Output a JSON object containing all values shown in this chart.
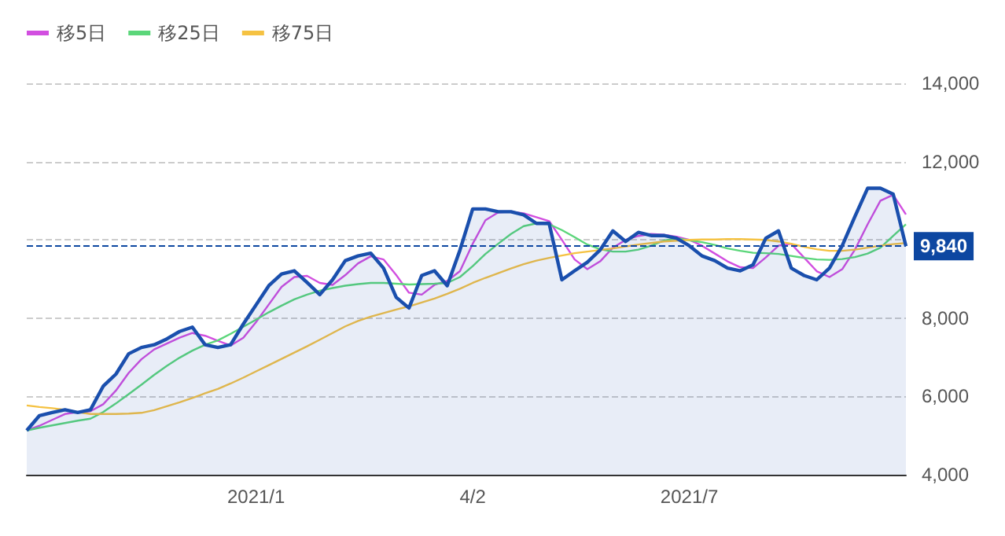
{
  "chart_data": {
    "type": "line",
    "categories": [
      null,
      null,
      null,
      null,
      null,
      null,
      null,
      null,
      null,
      null,
      null,
      null,
      null,
      null,
      null,
      null,
      null,
      null,
      "2021/1",
      null,
      null,
      null,
      null,
      null,
      null,
      null,
      null,
      null,
      null,
      null,
      null,
      null,
      null,
      null,
      null,
      "4/2",
      null,
      null,
      null,
      null,
      null,
      null,
      null,
      null,
      null,
      null,
      null,
      null,
      null,
      null,
      null,
      null,
      "2021/7",
      null,
      null,
      null,
      null,
      null,
      null,
      null,
      null,
      null,
      null,
      null,
      null,
      null,
      null,
      null,
      null,
      null
    ],
    "series": [
      {
        "type": "area",
        "color": "#1a4fad",
        "values": [
          5130,
          5510,
          5590,
          5660,
          5590,
          5660,
          6260,
          6570,
          7090,
          7250,
          7320,
          7470,
          7660,
          7770,
          7320,
          7250,
          7320,
          7850,
          8340,
          8830,
          9130,
          9210,
          8910,
          8600,
          8980,
          9470,
          9590,
          9660,
          9280,
          8530,
          8260,
          9090,
          9210,
          8830,
          9740,
          10790,
          10790,
          10720,
          10720,
          10640,
          10420,
          10420,
          8980,
          9210,
          9430,
          9740,
          10230,
          9960,
          10190,
          10110,
          10110,
          10040,
          9850,
          9590,
          9470,
          9280,
          9210,
          9360,
          10040,
          10230,
          9280,
          9090,
          8980,
          9280,
          9850,
          10600,
          11320,
          11320,
          11170,
          9840
        ]
      },
      {
        "name": "移5日",
        "color": "#d24fe0",
        "values": [
          5130,
          5250,
          5400,
          5550,
          5600,
          5620,
          5800,
          6150,
          6600,
          6950,
          7200,
          7350,
          7500,
          7620,
          7550,
          7420,
          7300,
          7500,
          7900,
          8350,
          8800,
          9050,
          9080,
          8900,
          8850,
          9100,
          9400,
          9580,
          9500,
          9100,
          8650,
          8600,
          8850,
          8950,
          9200,
          9900,
          10500,
          10700,
          10720,
          10680,
          10580,
          10480,
          10000,
          9500,
          9250,
          9450,
          9800,
          10000,
          10100,
          10150,
          10130,
          10080,
          10000,
          9850,
          9650,
          9450,
          9300,
          9280,
          9550,
          9850,
          9900,
          9550,
          9200,
          9050,
          9250,
          9750,
          10400,
          11000,
          11150,
          10650
        ]
      },
      {
        "name": "移25日",
        "color": "#5bd67a",
        "values": [
          5130,
          5200,
          5260,
          5320,
          5380,
          5430,
          5600,
          5820,
          6060,
          6300,
          6550,
          6780,
          6990,
          7170,
          7320,
          7430,
          7600,
          7780,
          7960,
          8150,
          8320,
          8480,
          8600,
          8700,
          8770,
          8830,
          8870,
          8900,
          8900,
          8880,
          8860,
          8870,
          8880,
          8900,
          9050,
          9330,
          9640,
          9900,
          10150,
          10350,
          10420,
          10400,
          10250,
          10070,
          9880,
          9760,
          9700,
          9700,
          9750,
          9850,
          9980,
          10040,
          9990,
          9940,
          9870,
          9780,
          9720,
          9670,
          9660,
          9640,
          9590,
          9540,
          9500,
          9490,
          9510,
          9560,
          9650,
          9800,
          10100,
          10400
        ]
      },
      {
        "name": "移75日",
        "color": "#f5c242",
        "values": [
          5770,
          5730,
          5700,
          5660,
          5600,
          5550,
          5550,
          5550,
          5560,
          5580,
          5650,
          5750,
          5850,
          5960,
          6080,
          6190,
          6330,
          6480,
          6640,
          6800,
          6960,
          7120,
          7280,
          7450,
          7620,
          7790,
          7930,
          8040,
          8130,
          8220,
          8300,
          8400,
          8500,
          8620,
          8750,
          8900,
          9030,
          9150,
          9270,
          9380,
          9470,
          9540,
          9600,
          9660,
          9700,
          9740,
          9780,
          9830,
          9880,
          9920,
          9960,
          9980,
          10000,
          10010,
          10010,
          10020,
          10020,
          10010,
          10000,
          9960,
          9900,
          9820,
          9760,
          9720,
          9720,
          9750,
          9800,
          9850,
          9890,
          9920
        ]
      }
    ],
    "ylim": [
      4000,
      14000
    ],
    "yticks": [
      {
        "value": 4000,
        "label": "4,000"
      },
      {
        "value": 6000,
        "label": "6,000"
      },
      {
        "value": 8000,
        "label": "8,000"
      },
      {
        "value": 10000,
        "label": null
      },
      {
        "value": 12000,
        "label": "12,000"
      },
      {
        "value": 14000,
        "label": "14,000"
      }
    ],
    "ref_lines": [
      {
        "axis": "y",
        "value": 9840,
        "label": "9,840",
        "color": "#0d47a1",
        "line_style": "dashed"
      }
    ],
    "grid": "y",
    "legend": "top left",
    "marker": "none",
    "line_style": "solid"
  }
}
